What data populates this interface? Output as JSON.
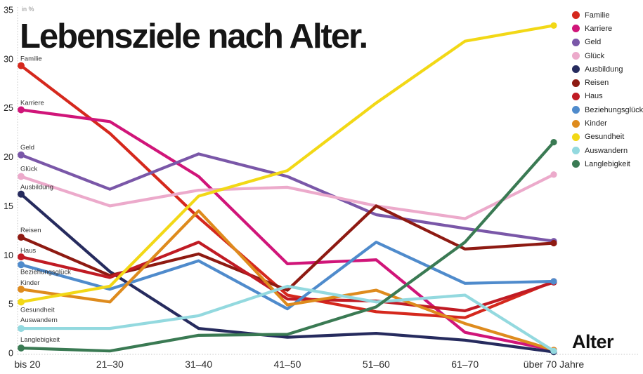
{
  "title": "Lebensziele nach Alter.",
  "y_axis": {
    "unit": "in %",
    "ticks": [
      0,
      5,
      10,
      15,
      20,
      25,
      30,
      35
    ],
    "max": 35
  },
  "x_axis": {
    "title": "Alter"
  },
  "chart_data": {
    "type": "line",
    "title": "Lebensziele nach Alter.",
    "xlabel": "Alter",
    "ylabel": "in %",
    "ylim": [
      0,
      35
    ],
    "grid": false,
    "legend_position": "top-right",
    "categories": [
      "bis 20",
      "21–30",
      "31–40",
      "41–50",
      "51–60",
      "61–70",
      "über 70 Jahre"
    ],
    "series": [
      {
        "name": "Familie",
        "color": "#d5281d",
        "values": [
          29.3,
          22.4,
          13.8,
          5.9,
          4.2,
          3.6,
          7.3
        ]
      },
      {
        "name": "Karriere",
        "color": "#d01579",
        "values": [
          24.8,
          23.6,
          18.0,
          9.1,
          9.5,
          2.1,
          0.3
        ]
      },
      {
        "name": "Geld",
        "color": "#7a57a8",
        "values": [
          20.2,
          16.7,
          20.3,
          18.0,
          14.1,
          12.7,
          11.4
        ]
      },
      {
        "name": "Glück",
        "color": "#ecaacb",
        "values": [
          18.0,
          15.0,
          16.6,
          16.9,
          15.0,
          13.7,
          18.2
        ]
      },
      {
        "name": "Ausbildung",
        "color": "#262b5e",
        "values": [
          16.2,
          8.3,
          2.5,
          1.6,
          2.0,
          1.3,
          0.1
        ]
      },
      {
        "name": "Reisen",
        "color": "#8e1a12",
        "values": [
          11.8,
          7.9,
          10.1,
          6.4,
          15.0,
          10.6,
          11.2
        ]
      },
      {
        "name": "Haus",
        "color": "#c01b24",
        "values": [
          9.8,
          7.7,
          11.3,
          5.5,
          5.3,
          4.3,
          7.2
        ]
      },
      {
        "name": "Beziehungsglück",
        "color": "#4f8bcc",
        "values": [
          9.0,
          6.5,
          9.4,
          4.5,
          11.3,
          7.1,
          7.3
        ]
      },
      {
        "name": "Kinder",
        "color": "#de8b1d",
        "values": [
          6.5,
          5.2,
          14.5,
          4.9,
          6.4,
          3.0,
          0.3
        ]
      },
      {
        "name": "Gesundheit",
        "color": "#f2d816",
        "values": [
          5.2,
          6.8,
          16.0,
          18.6,
          25.5,
          31.8,
          33.4
        ]
      },
      {
        "name": "Auswandern",
        "color": "#93d9df",
        "values": [
          2.5,
          2.5,
          3.8,
          6.8,
          5.2,
          5.9,
          0.2
        ]
      },
      {
        "name": "Langlebigkeit",
        "color": "#3a7a53",
        "values": [
          0.5,
          0.2,
          1.8,
          1.9,
          4.7,
          11.3,
          21.5
        ]
      }
    ]
  }
}
